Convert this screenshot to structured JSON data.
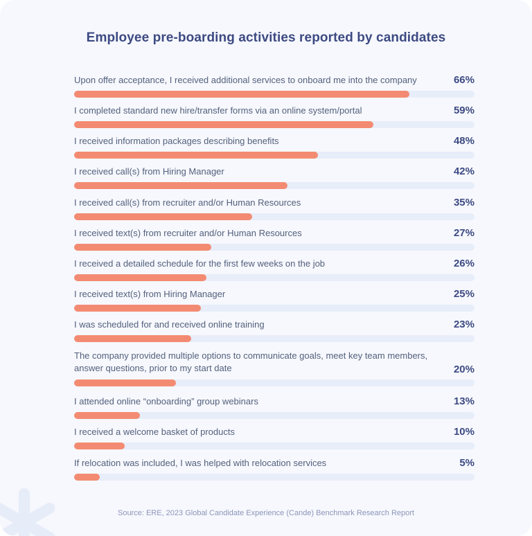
{
  "chart_data": {
    "type": "bar",
    "orientation": "horizontal",
    "title": "Employee pre-boarding activities reported by candidates",
    "xlim": [
      0,
      100
    ],
    "unit": "%",
    "categories": [
      "Upon offer acceptance, I received additional services to onboard me into the company",
      "I completed standard new hire/transfer forms via an online system/portal",
      "I received information packages describing benefits",
      "I received call(s) from Hiring Manager",
      "I received call(s) from recruiter and/or Human Resources",
      "I received text(s) from recruiter and/or Human Resources",
      "I received a detailed schedule for the first few weeks on the job",
      "I received text(s) from Hiring Manager",
      "I was scheduled for and received online training",
      "The company provided multiple options to communicate goals, meet key team members, answer questions, prior to my start date",
      "I attended online “onboarding” group webinars",
      "I received a welcome basket of products",
      "If relocation was included, I was helped with relocation services"
    ],
    "values": [
      66,
      59,
      48,
      42,
      35,
      27,
      26,
      25,
      23,
      20,
      13,
      10,
      5
    ],
    "value_labels": [
      "66%",
      "59%",
      "48%",
      "42%",
      "35%",
      "27%",
      "26%",
      "25%",
      "23%",
      "20%",
      "13%",
      "10%",
      "5%"
    ],
    "colors": {
      "bar": "#f38b72",
      "track": "#e7edf9",
      "title": "#3d4a82"
    }
  },
  "footer": {
    "source": "Source: ERE, 2023 Global Candidate Experience (Cande) Benchmark Research Report"
  },
  "decoration": {
    "corner_icon": "asterisk-icon"
  }
}
